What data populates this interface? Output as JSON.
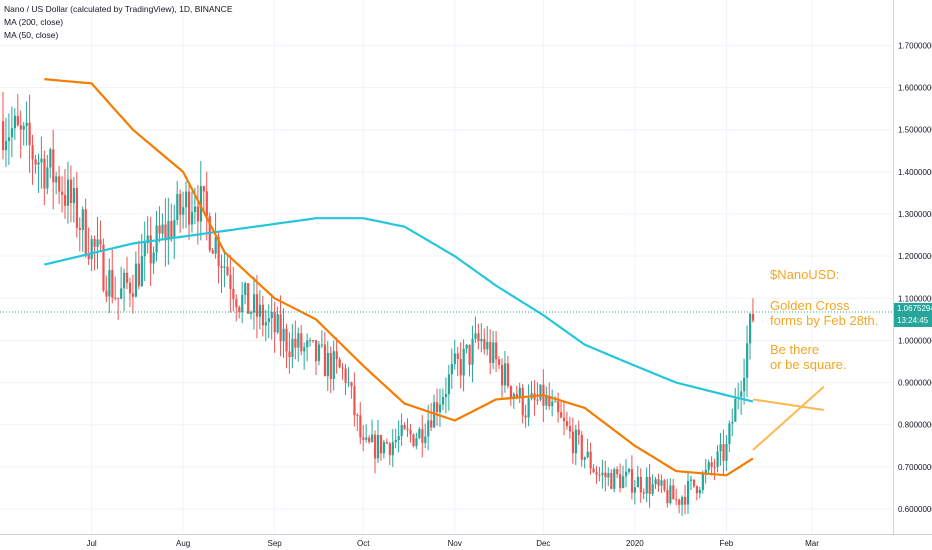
{
  "header": {
    "title": "Nano / US Dollar (calculated by TradingView), 1D, BINANCE",
    "ma200_label": "MA (200, close)",
    "ma50_label": "MA (50, close)"
  },
  "price_tag": {
    "price": "1.0675294",
    "countdown": "13:24:45"
  },
  "annotation": {
    "line1": "$NanoUSD:",
    "line2": "Golden Cross",
    "line3": "forms by Feb 28th.",
    "line4": "Be there",
    "line5": "or be square."
  },
  "colors": {
    "up": "#26a69a",
    "down": "#ef5350",
    "ma200": "#26c6da",
    "ma50": "#f57c00",
    "annotation": "#f5a623",
    "grid": "#f0f3fa"
  },
  "chart_data": {
    "type": "line",
    "title": "Nano / US Dollar (calculated by TradingView), 1D, BINANCE",
    "x_tick_labels": [
      "Jul",
      "Aug",
      "Sep",
      "Oct",
      "Nov",
      "Dec",
      "2020",
      "Feb",
      "Mar"
    ],
    "y_tick_labels": [
      "0.6000000",
      "0.7000000",
      "0.8000000",
      "0.9000000",
      "1.0000000",
      "1.1000000",
      "1.2000000",
      "1.3000000",
      "1.4000000",
      "1.5000000",
      "1.6000000",
      "1.7000000"
    ],
    "ylim": [
      0.57,
      1.78
    ],
    "last_price": 1.0675294,
    "grid": true,
    "series": [
      {
        "name": "MA (200, close)",
        "x": [
          "2019-06-15",
          "2019-07-15",
          "2019-08-15",
          "2019-09-15",
          "2019-10-01",
          "2019-10-15",
          "2019-11-01",
          "2019-11-15",
          "2019-12-01",
          "2019-12-15",
          "2020-01-01",
          "2020-01-15",
          "2020-02-01",
          "2020-02-10"
        ],
        "values": [
          1.18,
          1.23,
          1.26,
          1.29,
          1.29,
          1.27,
          1.2,
          1.13,
          1.06,
          0.99,
          0.94,
          0.9,
          0.87,
          0.855
        ]
      },
      {
        "name": "MA (50, close)",
        "x": [
          "2019-06-15",
          "2019-07-01",
          "2019-07-15",
          "2019-08-01",
          "2019-08-15",
          "2019-09-01",
          "2019-09-15",
          "2019-10-01",
          "2019-10-15",
          "2019-11-01",
          "2019-11-15",
          "2019-12-01",
          "2019-12-15",
          "2020-01-01",
          "2020-01-15",
          "2020-02-01",
          "2020-02-10"
        ],
        "values": [
          1.62,
          1.61,
          1.5,
          1.4,
          1.21,
          1.1,
          1.05,
          0.94,
          0.85,
          0.81,
          0.86,
          0.87,
          0.84,
          0.75,
          0.69,
          0.68,
          0.72
        ]
      }
    ],
    "projection_lines": [
      {
        "x": [
          "2020-02-10",
          "2020-03-05"
        ],
        "values": [
          0.86,
          0.835
        ]
      },
      {
        "x": [
          "2020-02-10",
          "2020-03-05"
        ],
        "values": [
          0.74,
          0.89
        ]
      }
    ]
  }
}
